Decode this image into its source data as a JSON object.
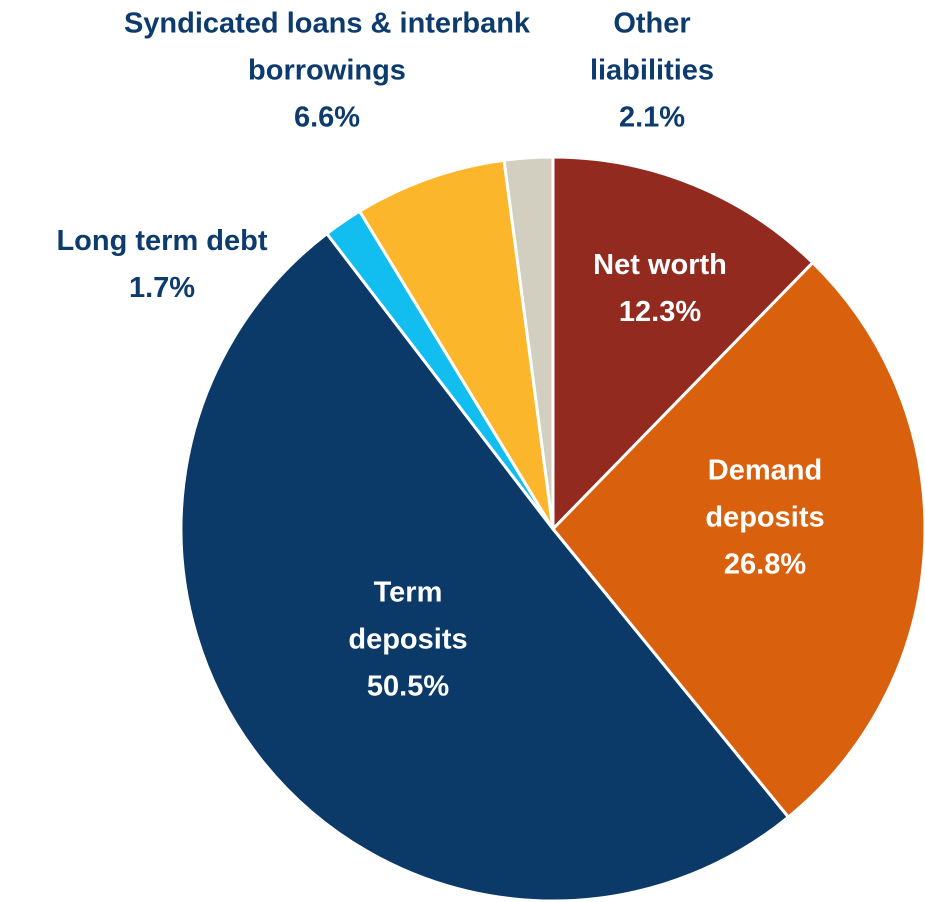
{
  "chart_data": {
    "type": "pie",
    "categories": [
      "Net worth",
      "Demand deposits",
      "Term deposits",
      "Long term debt",
      "Syndicated loans & interbank borrowings",
      "Other liabilities"
    ],
    "values": [
      12.3,
      26.8,
      50.5,
      1.7,
      6.6,
      2.1
    ],
    "value_labels": [
      "12.3%",
      "26.8%",
      "50.5%",
      "1.7%",
      "6.6%",
      "2.1%"
    ],
    "colors": [
      "#922a20",
      "#d9600c",
      "#0b3a69",
      "#12bdf0",
      "#fbb62c",
      "#d2cfc0"
    ]
  }
}
